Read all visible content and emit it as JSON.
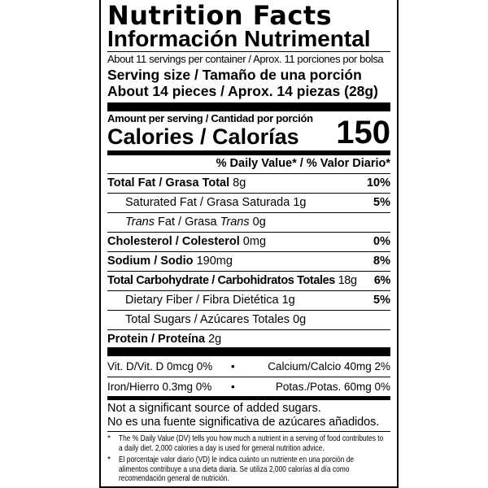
{
  "title": "Nutrition Facts",
  "title_es": "Información Nutrimental",
  "servings": "About 11 servings per container / Aprox. 11 porciones por bolsa",
  "serving_size_label": "Serving size / Tamaño de una porción",
  "serving_size_value": "About 14 pieces / Aprox. 14 piezas (28g)",
  "amount_per_serving": "Amount per serving / Cantidad por porción",
  "calories_label": "Calories / Calorías",
  "calories_value": "150",
  "dv_header": "% Daily Value* / % Valor Diario*",
  "nutrients": [
    {
      "name": "Total Fat / Grasa Total",
      "amount": "8g",
      "dv": "10%"
    },
    {
      "name": "Saturated Fat / Grasa Saturada",
      "amount": "1g",
      "dv": "5%"
    },
    {
      "name_italic": "Trans",
      "name": " Fat / Grasa ",
      "name_italic2": "Trans",
      "amount": "0g",
      "dv": ""
    },
    {
      "name": "Cholesterol / Colesterol",
      "amount": "0mg",
      "dv": "0%"
    },
    {
      "name": "Sodium / Sodio",
      "amount": "190mg",
      "dv": "8%"
    },
    {
      "name": "Total Carbohydrate / Carbohidratos Totales",
      "amount": "18g",
      "dv": "6%"
    },
    {
      "name": "Dietary Fiber / Fibra Dietética",
      "amount": "1g",
      "dv": "5%"
    },
    {
      "name": "Total Sugars / Azúcares Totales",
      "amount": "0g",
      "dv": ""
    },
    {
      "name": "Protein / Proteína",
      "amount": "2g",
      "dv": ""
    }
  ],
  "vitamins": [
    {
      "left": "Vit. D/Vit. D 0mcg 0%",
      "bullet": "•",
      "right": "Calcium/Calcio 40mg 2%"
    },
    {
      "left": "Iron/Hierro 0.3mg 0%",
      "bullet": "•",
      "right": "Potas./Potas. 60mg 0%"
    }
  ],
  "sugar_note_1": "Not a significant source of added sugars.",
  "sugar_note_2": "No es una fuente significativa de azúcares añadidos.",
  "footnotes": [
    {
      "star": "*",
      "text": "The % Daily Value (DV) tells you how much a nutrient in a serving of food contributes to a daily diet. 2,000 calories a day is used for general nutrition advice."
    },
    {
      "star": "*",
      "text": "El porcentaje valor diario (VD) le indica cuánto un nutriente en una porción de alimentos contribuye a una dieta diaria. Se utiliza 2,000 calorías al día como recomendación general de nutrición."
    }
  ]
}
